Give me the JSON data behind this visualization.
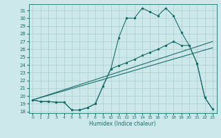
{
  "xlabel": "Humidex (Indice chaleur)",
  "bg_color": "#cce8ea",
  "grid_color": "#aacccc",
  "line_color": "#1a6e6a",
  "xlim": [
    -0.5,
    23.5
  ],
  "ylim": [
    17.8,
    31.8
  ],
  "yticks": [
    18,
    19,
    20,
    21,
    22,
    23,
    24,
    25,
    26,
    27,
    28,
    29,
    30,
    31
  ],
  "xticks": [
    0,
    1,
    2,
    3,
    4,
    5,
    6,
    7,
    8,
    9,
    10,
    11,
    12,
    13,
    14,
    15,
    16,
    17,
    18,
    19,
    20,
    21,
    22,
    23
  ],
  "curve1_x": [
    0,
    1,
    2,
    3,
    4,
    5,
    6,
    7,
    8,
    9,
    10,
    11,
    12,
    13,
    14,
    15,
    16,
    17,
    18,
    19,
    20,
    21,
    22,
    23
  ],
  "curve1_y": [
    19.5,
    19.3,
    19.3,
    19.2,
    19.2,
    18.2,
    18.2,
    18.5,
    19.0,
    21.3,
    23.5,
    27.5,
    30.0,
    30.0,
    31.3,
    30.8,
    30.3,
    31.3,
    30.3,
    28.2,
    26.5,
    24.2,
    19.8,
    18.3
  ],
  "curve2_x": [
    0,
    1,
    2,
    3,
    4,
    5,
    6,
    7,
    8,
    9,
    10,
    11,
    12,
    13,
    14,
    15,
    16,
    17,
    18,
    19,
    20,
    21,
    22,
    23
  ],
  "curve2_y": [
    19.5,
    19.3,
    19.3,
    19.2,
    19.2,
    18.2,
    18.2,
    18.5,
    19.0,
    21.3,
    23.5,
    23.9,
    24.3,
    24.7,
    25.2,
    25.6,
    26.0,
    26.5,
    27.0,
    26.5,
    26.5,
    24.2,
    19.8,
    18.3
  ],
  "line1_x": [
    0,
    23
  ],
  "line1_y": [
    19.5,
    27.0
  ],
  "line2_x": [
    0,
    23
  ],
  "line2_y": [
    19.5,
    26.2
  ]
}
